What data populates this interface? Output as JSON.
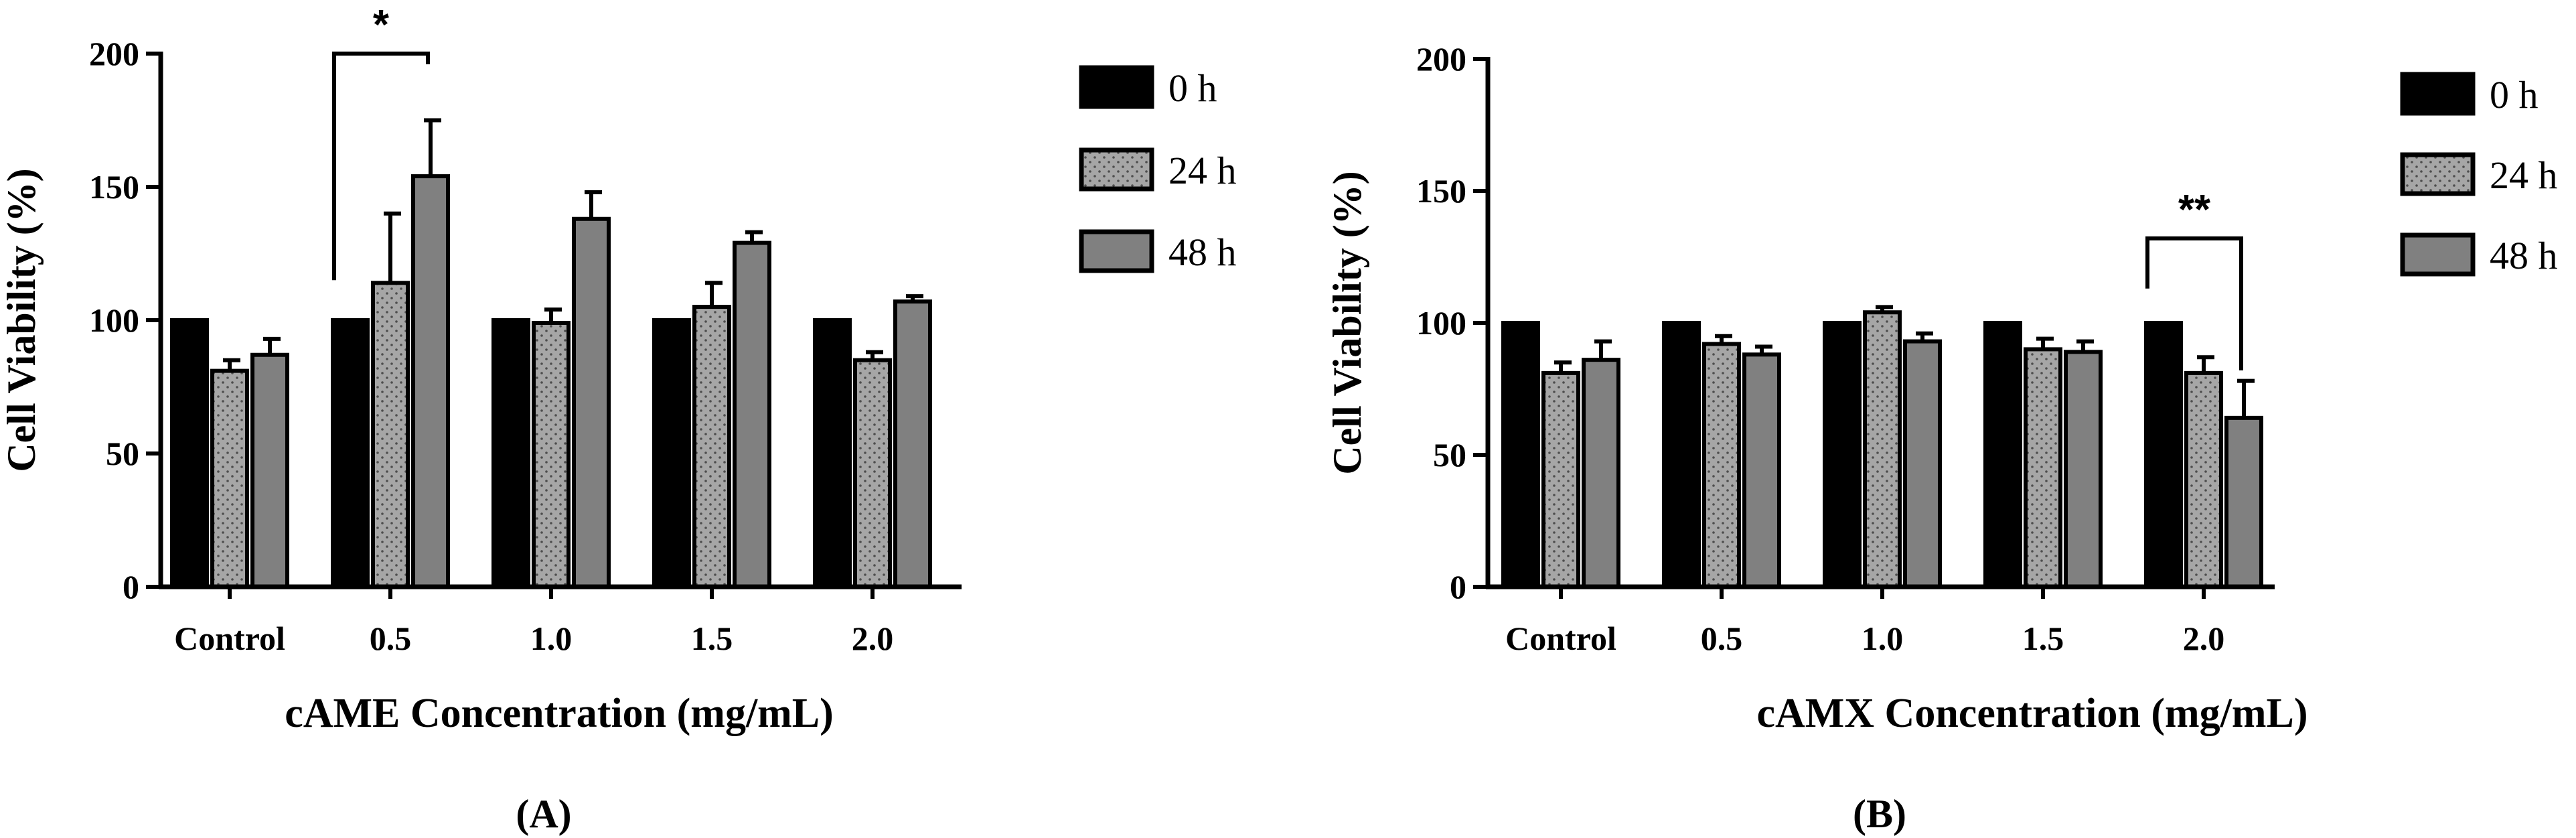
{
  "figure": {
    "series_styles": [
      {
        "name": "0 h",
        "fill": "#000000",
        "pattern": "solid"
      },
      {
        "name": "24 h",
        "fill": "#a6a6a6",
        "pattern": "dots"
      },
      {
        "name": "48 h",
        "fill": "#808080",
        "pattern": "solid"
      }
    ],
    "colors": {
      "stroke": "#000000",
      "dot": "#4d4d4d",
      "background": "#ffffff"
    }
  },
  "chart_data": [
    {
      "type": "bar",
      "panel_label": "(A)",
      "categories": [
        "Control",
        "0.5",
        "1.0",
        "1.5",
        "2.0"
      ],
      "series": [
        {
          "name": "0 h",
          "values": [
            100,
            100,
            100,
            100,
            100
          ],
          "errors": [
            0,
            0,
            0,
            0,
            0
          ]
        },
        {
          "name": "24 h",
          "values": [
            81,
            114,
            99,
            105,
            85
          ],
          "errors": [
            4,
            26,
            5,
            9,
            3
          ]
        },
        {
          "name": "48 h",
          "values": [
            87,
            154,
            138,
            129,
            107
          ],
          "errors": [
            6,
            21,
            10,
            4,
            2
          ]
        }
      ],
      "xlabel": "cAME Concentration (mg/mL)",
      "ylabel": "Cell Viability (%)",
      "ylim": [
        0,
        200
      ],
      "yticks": [
        "0",
        "50",
        "100",
        "150",
        "200"
      ],
      "legend": {
        "placement": "right",
        "entries": [
          "0 h",
          "24 h",
          "48 h"
        ]
      },
      "annotations": [
        {
          "text": "*",
          "category_index": 1,
          "from_series": 0,
          "to_series": 2,
          "bracket_y": 200,
          "left_drop_to": 115,
          "right_drop_to": 196
        }
      ]
    },
    {
      "type": "bar",
      "panel_label": "(B)",
      "categories": [
        "Control",
        "0.5",
        "1.0",
        "1.5",
        "2.0"
      ],
      "series": [
        {
          "name": "0 h",
          "values": [
            100,
            100,
            100,
            100,
            100
          ],
          "errors": [
            0,
            0,
            0,
            0,
            0
          ]
        },
        {
          "name": "24 h",
          "values": [
            81,
            92,
            104,
            90,
            81
          ],
          "errors": [
            4,
            3,
            2,
            4,
            6
          ]
        },
        {
          "name": "48 h",
          "values": [
            86,
            88,
            93,
            89,
            64
          ],
          "errors": [
            7,
            3,
            3,
            4,
            14
          ]
        }
      ],
      "xlabel": "cAMX Concentration (mg/mL)",
      "ylabel": "Cell Viability  (%)",
      "ylim": [
        0,
        200
      ],
      "yticks": [
        "0",
        "50",
        "100",
        "150",
        "200"
      ],
      "legend": {
        "placement": "right",
        "entries": [
          "0 h",
          "24 h",
          "48 h"
        ]
      },
      "annotations": [
        {
          "text": "**",
          "category_index": 4,
          "from_series": 0,
          "to_series": 2,
          "bracket_y": 132,
          "left_drop_to": 113,
          "right_drop_to": 82
        }
      ]
    }
  ]
}
